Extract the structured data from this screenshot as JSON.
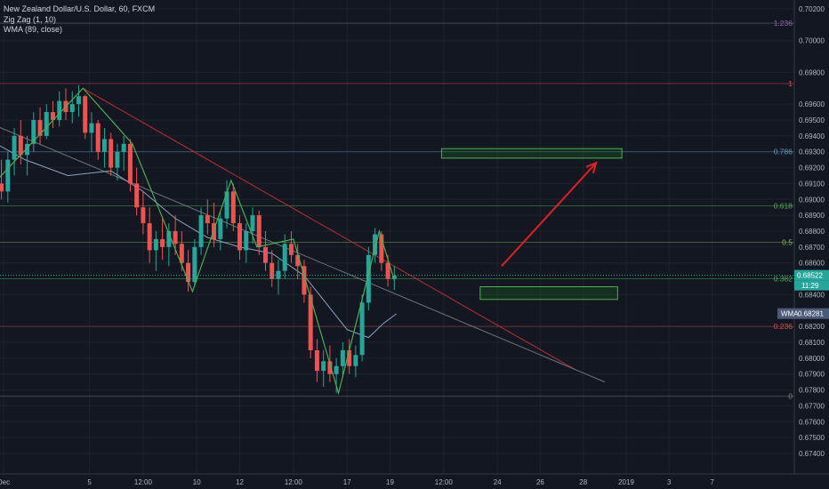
{
  "legend": {
    "symbol": "New Zealand Dollar/U.S. Dollar, 60, FXCM",
    "zigzag": "Zig Zag (1, 10)",
    "wma": "WMA (89, close)"
  },
  "chart_data": {
    "type": "candlestick",
    "price_ticks": [
      "0.70200",
      "0.70000",
      "0.69800",
      "0.69600",
      "0.69500",
      "0.69400",
      "0.69300",
      "0.69200",
      "0.69100",
      "0.69000",
      "0.68900",
      "0.68800",
      "0.68700",
      "0.68600",
      "0.68400",
      "0.68200",
      "0.68100",
      "0.68000",
      "0.67900",
      "0.67800",
      "0.67700",
      "0.67600",
      "0.67500",
      "0.67400"
    ],
    "price_tick_values": [
      0.702,
      0.7,
      0.698,
      0.696,
      0.695,
      0.694,
      0.693,
      0.692,
      0.691,
      0.69,
      0.689,
      0.688,
      0.687,
      0.686,
      0.684,
      0.682,
      0.681,
      0.68,
      0.679,
      0.678,
      0.677,
      0.676,
      0.675,
      0.674
    ],
    "time_ticks": [
      {
        "label": "Dec",
        "day": 1.0
      },
      {
        "label": "5",
        "day": 5.0
      },
      {
        "label": "12:00",
        "day": 7.5
      },
      {
        "label": "10",
        "day": 10.0
      },
      {
        "label": "12",
        "day": 12.0
      },
      {
        "label": "12:00",
        "day": 14.5
      },
      {
        "label": "17",
        "day": 17.0
      },
      {
        "label": "19",
        "day": 19.0
      },
      {
        "label": "12:00",
        "day": 21.5
      },
      {
        "label": "24",
        "day": 24.0
      },
      {
        "label": "26",
        "day": 26.0
      },
      {
        "label": "28",
        "day": 28.0
      },
      {
        "label": "2019",
        "day": 30.0
      },
      {
        "label": "3",
        "day": 32.0
      },
      {
        "label": "7",
        "day": 34.0
      }
    ],
    "fib_levels": [
      {
        "label": "1.236",
        "price": 0.7011,
        "color": "#8e6aa8"
      },
      {
        "label": "1",
        "price": 0.6973,
        "color": "#e04b4b"
      },
      {
        "label": "0.786",
        "price": 0.693,
        "color": "#5aa0c8"
      },
      {
        "label": "0.618",
        "price": 0.6896,
        "color": "#4caf50"
      },
      {
        "label": "0.5",
        "price": 0.6873,
        "color": "#8bc34a"
      },
      {
        "label": "0.382",
        "price": 0.685,
        "color": "#4caf50"
      },
      {
        "label": "0.236",
        "price": 0.682,
        "color": "#e04b4b"
      },
      {
        "label": "0",
        "price": 0.6776,
        "color": "#888888"
      }
    ],
    "zigzag": [
      {
        "day": 0.2,
        "price": 0.6905
      },
      {
        "day": 4.7,
        "price": 0.697
      },
      {
        "day": 7.0,
        "price": 0.6935
      },
      {
        "day": 9.8,
        "price": 0.6842
      },
      {
        "day": 11.6,
        "price": 0.6912
      },
      {
        "day": 12.8,
        "price": 0.687
      },
      {
        "day": 14.5,
        "price": 0.6875
      },
      {
        "day": 16.6,
        "price": 0.6778
      },
      {
        "day": 18.5,
        "price": 0.688
      },
      {
        "day": 19.2,
        "price": 0.6849
      }
    ],
    "wma": [
      {
        "day": 0.0,
        "price": 0.694
      },
      {
        "day": 2.0,
        "price": 0.6925
      },
      {
        "day": 4.0,
        "price": 0.6915
      },
      {
        "day": 6.0,
        "price": 0.6918
      },
      {
        "day": 7.5,
        "price": 0.6905
      },
      {
        "day": 9.0,
        "price": 0.6888
      },
      {
        "day": 10.5,
        "price": 0.6876
      },
      {
        "day": 12.0,
        "price": 0.687
      },
      {
        "day": 13.5,
        "price": 0.6866
      },
      {
        "day": 15.0,
        "price": 0.6852
      },
      {
        "day": 16.0,
        "price": 0.6835
      },
      {
        "day": 17.0,
        "price": 0.6818
      },
      {
        "day": 18.0,
        "price": 0.6813
      },
      {
        "day": 18.7,
        "price": 0.6822
      },
      {
        "day": 19.3,
        "price": 0.6828
      }
    ],
    "candles": [
      [
        0.0,
        0.688,
        0.6885,
        0.6858,
        0.6862
      ],
      [
        0.3,
        0.6862,
        0.69,
        0.686,
        0.6895
      ],
      [
        0.6,
        0.6895,
        0.6915,
        0.6888,
        0.691
      ],
      [
        0.9,
        0.691,
        0.6925,
        0.69,
        0.6905
      ],
      [
        1.2,
        0.6905,
        0.693,
        0.6898,
        0.6925
      ],
      [
        1.5,
        0.6925,
        0.6945,
        0.6915,
        0.694
      ],
      [
        1.8,
        0.694,
        0.695,
        0.6922,
        0.6928
      ],
      [
        2.1,
        0.6928,
        0.694,
        0.6915,
        0.6935
      ],
      [
        2.4,
        0.6935,
        0.6955,
        0.693,
        0.695
      ],
      [
        2.7,
        0.695,
        0.6958,
        0.6935,
        0.694
      ],
      [
        3.0,
        0.694,
        0.696,
        0.6938,
        0.6955
      ],
      [
        3.3,
        0.6955,
        0.6962,
        0.6945,
        0.695
      ],
      [
        3.6,
        0.695,
        0.6968,
        0.6946,
        0.6962
      ],
      [
        3.9,
        0.6962,
        0.697,
        0.695,
        0.6955
      ],
      [
        4.2,
        0.6955,
        0.6968,
        0.6948,
        0.696
      ],
      [
        4.5,
        0.696,
        0.6972,
        0.6952,
        0.6965
      ],
      [
        4.8,
        0.6965,
        0.6966,
        0.6938,
        0.6942
      ],
      [
        5.1,
        0.6942,
        0.6955,
        0.693,
        0.6948
      ],
      [
        5.4,
        0.6948,
        0.695,
        0.6925,
        0.693
      ],
      [
        5.7,
        0.693,
        0.6945,
        0.692,
        0.6938
      ],
      [
        6.0,
        0.6938,
        0.6942,
        0.6915,
        0.692
      ],
      [
        6.3,
        0.692,
        0.6935,
        0.6912,
        0.693
      ],
      [
        6.6,
        0.693,
        0.694,
        0.6918,
        0.6935
      ],
      [
        6.9,
        0.6935,
        0.6938,
        0.6905,
        0.691
      ],
      [
        7.2,
        0.691,
        0.692,
        0.689,
        0.6895
      ],
      [
        7.5,
        0.6895,
        0.6905,
        0.6878,
        0.6885
      ],
      [
        7.8,
        0.6885,
        0.6895,
        0.686,
        0.6868
      ],
      [
        8.1,
        0.6868,
        0.688,
        0.6855,
        0.6875
      ],
      [
        8.4,
        0.6875,
        0.6888,
        0.6862,
        0.687
      ],
      [
        8.7,
        0.687,
        0.6885,
        0.6858,
        0.688
      ],
      [
        9.0,
        0.688,
        0.689,
        0.6865,
        0.6872
      ],
      [
        9.3,
        0.6872,
        0.688,
        0.6855,
        0.686
      ],
      [
        9.6,
        0.686,
        0.6868,
        0.6842,
        0.6848
      ],
      [
        9.9,
        0.6848,
        0.6875,
        0.6845,
        0.687
      ],
      [
        10.2,
        0.687,
        0.6895,
        0.6865,
        0.689
      ],
      [
        10.5,
        0.689,
        0.69,
        0.6878,
        0.6885
      ],
      [
        10.8,
        0.6885,
        0.6898,
        0.687,
        0.6875
      ],
      [
        11.1,
        0.6875,
        0.6892,
        0.6868,
        0.6888
      ],
      [
        11.4,
        0.6888,
        0.6912,
        0.6882,
        0.6905
      ],
      [
        11.7,
        0.6905,
        0.691,
        0.688,
        0.6885
      ],
      [
        12.0,
        0.6885,
        0.689,
        0.6862,
        0.6868
      ],
      [
        12.3,
        0.6868,
        0.6885,
        0.686,
        0.688
      ],
      [
        12.6,
        0.688,
        0.6895,
        0.6872,
        0.689
      ],
      [
        12.9,
        0.689,
        0.6893,
        0.6865,
        0.687
      ],
      [
        13.2,
        0.687,
        0.688,
        0.6855,
        0.686
      ],
      [
        13.5,
        0.686,
        0.6868,
        0.6845,
        0.685
      ],
      [
        13.8,
        0.685,
        0.6862,
        0.684,
        0.6855
      ],
      [
        14.1,
        0.6855,
        0.6878,
        0.685,
        0.6872
      ],
      [
        14.4,
        0.6872,
        0.688,
        0.686,
        0.6865
      ],
      [
        14.7,
        0.6865,
        0.6872,
        0.685,
        0.6858
      ],
      [
        15.0,
        0.6858,
        0.6862,
        0.6835,
        0.684
      ],
      [
        15.3,
        0.684,
        0.6845,
        0.68,
        0.6805
      ],
      [
        15.6,
        0.6805,
        0.6812,
        0.6785,
        0.6792
      ],
      [
        15.9,
        0.6792,
        0.6805,
        0.6782,
        0.6798
      ],
      [
        16.2,
        0.6798,
        0.6808,
        0.6785,
        0.679
      ],
      [
        16.5,
        0.679,
        0.68,
        0.6778,
        0.6795
      ],
      [
        16.8,
        0.6795,
        0.681,
        0.6788,
        0.6805
      ],
      [
        17.1,
        0.6805,
        0.6812,
        0.679,
        0.6795
      ],
      [
        17.4,
        0.6795,
        0.6808,
        0.6788,
        0.6802
      ],
      [
        17.7,
        0.6802,
        0.684,
        0.6798,
        0.6835
      ],
      [
        18.0,
        0.6835,
        0.687,
        0.683,
        0.6865
      ],
      [
        18.3,
        0.6865,
        0.6882,
        0.686,
        0.6878
      ],
      [
        18.6,
        0.6878,
        0.688,
        0.6855,
        0.686
      ],
      [
        18.9,
        0.686,
        0.6865,
        0.6845,
        0.685
      ],
      [
        19.2,
        0.685,
        0.6858,
        0.6843,
        0.6852
      ]
    ],
    "current_price": {
      "label": "0.68522",
      "sub": "11:29",
      "price": 0.68522
    },
    "wma_badge": {
      "label": "WMA",
      "value": "0.68281",
      "price": 0.68281
    },
    "zones": [
      {
        "name": "resistance-target",
        "day_start": 21.4,
        "day_end": 29.8,
        "price_top": 0.6932,
        "price_bottom": 0.6926
      },
      {
        "name": "support-zone",
        "day_start": 23.2,
        "day_end": 29.6,
        "price_top": 0.6845,
        "price_bottom": 0.6837
      }
    ],
    "trendlines": [
      {
        "name": "red-downtrend",
        "color": "#d32f2f",
        "p1": {
          "day": 4.7,
          "price": 0.697
        },
        "p2": {
          "day": 27.6,
          "price": 0.6793
        }
      },
      {
        "name": "gray-trendline",
        "color": "#787b86",
        "p1": {
          "day": 0.0,
          "price": 0.695
        },
        "p2": {
          "day": 29.0,
          "price": 0.6785
        }
      }
    ],
    "arrow": {
      "color": "#e02020",
      "from": {
        "day": 24.2,
        "price": 0.6858
      },
      "to": {
        "day": 28.6,
        "price": 0.6923
      }
    },
    "colors": {
      "up": "#26a69a",
      "down": "#ef5350",
      "zigzag": "#4caf50",
      "wma": "#8aa4c4",
      "background": "#131722",
      "zone": "#1b5e20"
    }
  }
}
